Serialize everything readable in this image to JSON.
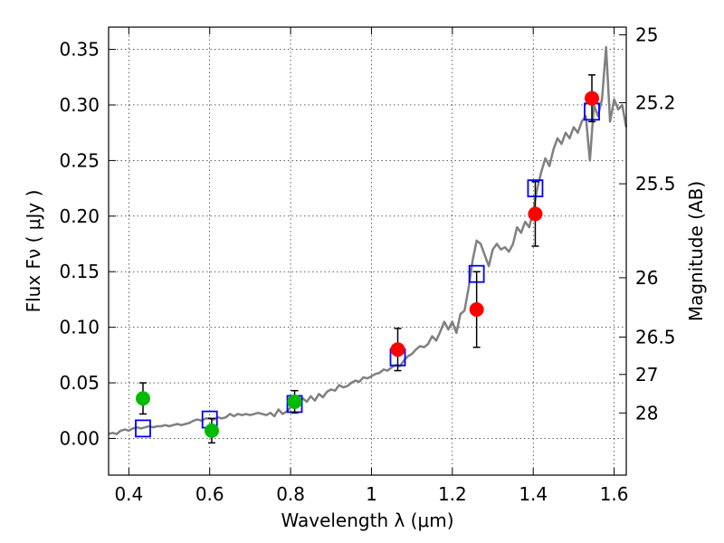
{
  "chart_data": {
    "type": "scatter",
    "xlabel": "Wavelength  λ (μm)",
    "ylabel": "Flux  Fν  ( μJy )",
    "y2label": "Magnitude (AB)",
    "xlim": [
      0.35,
      1.63
    ],
    "ylim": [
      -0.033,
      0.37
    ],
    "grid": true,
    "x_ticks": [
      {
        "value": 0.4,
        "label": "0.4"
      },
      {
        "value": 0.6,
        "label": "0.6"
      },
      {
        "value": 0.8,
        "label": "0.8"
      },
      {
        "value": 1.0,
        "label": "1"
      },
      {
        "value": 1.2,
        "label": "1.2"
      },
      {
        "value": 1.4,
        "label": "1.4"
      },
      {
        "value": 1.6,
        "label": "1.6"
      }
    ],
    "y_ticks": [
      {
        "value": 0.0,
        "label": "0.00"
      },
      {
        "value": 0.05,
        "label": "0.05"
      },
      {
        "value": 0.1,
        "label": "0.10"
      },
      {
        "value": 0.15,
        "label": "0.15"
      },
      {
        "value": 0.2,
        "label": "0.20"
      },
      {
        "value": 0.25,
        "label": "0.25"
      },
      {
        "value": 0.3,
        "label": "0.30"
      },
      {
        "value": 0.35,
        "label": "0.35"
      }
    ],
    "y2_ticks": [
      {
        "mag": 25,
        "label": "25"
      },
      {
        "mag": 25.2,
        "label": "25.2"
      },
      {
        "mag": 25.5,
        "label": "25.5"
      },
      {
        "mag": 26,
        "label": "26"
      },
      {
        "mag": 26.5,
        "label": "26.5"
      },
      {
        "mag": 27,
        "label": "27"
      },
      {
        "mag": 28,
        "label": "28"
      }
    ],
    "series": [
      {
        "kind": "line",
        "color": "#808080",
        "x": [
          0.35,
          0.36,
          0.37,
          0.38,
          0.39,
          0.4,
          0.41,
          0.42,
          0.43,
          0.44,
          0.45,
          0.46,
          0.47,
          0.48,
          0.49,
          0.5,
          0.51,
          0.52,
          0.53,
          0.54,
          0.55,
          0.56,
          0.57,
          0.58,
          0.59,
          0.6,
          0.61,
          0.62,
          0.63,
          0.64,
          0.65,
          0.66,
          0.67,
          0.68,
          0.69,
          0.7,
          0.71,
          0.72,
          0.73,
          0.74,
          0.75,
          0.76,
          0.77,
          0.78,
          0.79,
          0.8,
          0.81,
          0.82,
          0.83,
          0.84,
          0.85,
          0.86,
          0.87,
          0.88,
          0.89,
          0.9,
          0.91,
          0.92,
          0.93,
          0.94,
          0.95,
          0.96,
          0.97,
          0.98,
          0.99,
          1.0,
          1.01,
          1.02,
          1.03,
          1.04,
          1.05,
          1.06,
          1.07,
          1.08,
          1.09,
          1.1,
          1.11,
          1.12,
          1.13,
          1.14,
          1.15,
          1.16,
          1.17,
          1.18,
          1.19,
          1.2,
          1.21,
          1.22,
          1.23,
          1.24,
          1.25,
          1.26,
          1.27,
          1.28,
          1.29,
          1.3,
          1.31,
          1.32,
          1.33,
          1.34,
          1.35,
          1.36,
          1.37,
          1.38,
          1.39,
          1.4,
          1.41,
          1.42,
          1.43,
          1.44,
          1.45,
          1.46,
          1.47,
          1.48,
          1.49,
          1.5,
          1.51,
          1.52,
          1.53,
          1.54,
          1.55,
          1.56,
          1.57,
          1.58,
          1.59,
          1.6,
          1.61,
          1.62,
          1.63
        ],
        "y": [
          0.004,
          0.005,
          0.004,
          0.007,
          0.008,
          0.007,
          0.009,
          0.01,
          0.009,
          0.01,
          0.011,
          0.01,
          0.011,
          0.011,
          0.012,
          0.011,
          0.012,
          0.013,
          0.012,
          0.013,
          0.014,
          0.016,
          0.017,
          0.016,
          0.018,
          0.018,
          0.017,
          0.019,
          0.018,
          0.019,
          0.022,
          0.02,
          0.022,
          0.021,
          0.022,
          0.021,
          0.022,
          0.023,
          0.022,
          0.021,
          0.023,
          0.02,
          0.026,
          0.022,
          0.024,
          0.028,
          0.03,
          0.031,
          0.036,
          0.033,
          0.038,
          0.034,
          0.04,
          0.037,
          0.042,
          0.044,
          0.043,
          0.048,
          0.046,
          0.047,
          0.05,
          0.052,
          0.051,
          0.055,
          0.054,
          0.056,
          0.058,
          0.059,
          0.062,
          0.061,
          0.064,
          0.066,
          0.065,
          0.07,
          0.074,
          0.076,
          0.08,
          0.083,
          0.082,
          0.085,
          0.092,
          0.088,
          0.096,
          0.105,
          0.098,
          0.105,
          0.095,
          0.112,
          0.115,
          0.135,
          0.16,
          0.178,
          0.175,
          0.165,
          0.155,
          0.17,
          0.175,
          0.17,
          0.172,
          0.168,
          0.175,
          0.19,
          0.185,
          0.195,
          0.19,
          0.205,
          0.225,
          0.24,
          0.252,
          0.245,
          0.26,
          0.27,
          0.265,
          0.275,
          0.27,
          0.28,
          0.275,
          0.285,
          0.29,
          0.25,
          0.3,
          0.29,
          0.305,
          0.352,
          0.285,
          0.305,
          0.296,
          0.3,
          0.28
        ]
      },
      {
        "kind": "model-boxes",
        "color": "#0000ff",
        "x": [
          0.435,
          0.6,
          0.81,
          1.065,
          1.26,
          1.405,
          1.545
        ],
        "y": [
          0.009,
          0.017,
          0.031,
          0.073,
          0.148,
          0.225,
          0.294
        ]
      },
      {
        "kind": "points",
        "color": "#00bb00",
        "x": [
          0.435,
          0.605,
          0.81
        ],
        "y": [
          0.036,
          0.007,
          0.033
        ],
        "err": [
          0.014,
          0.011,
          0.01
        ]
      },
      {
        "kind": "points",
        "color": "#ff0000",
        "x": [
          1.065,
          1.26,
          1.405,
          1.545
        ],
        "y": [
          0.08,
          0.116,
          0.202,
          0.306
        ],
        "err": [
          0.019,
          0.034,
          0.029,
          0.021
        ]
      }
    ]
  }
}
